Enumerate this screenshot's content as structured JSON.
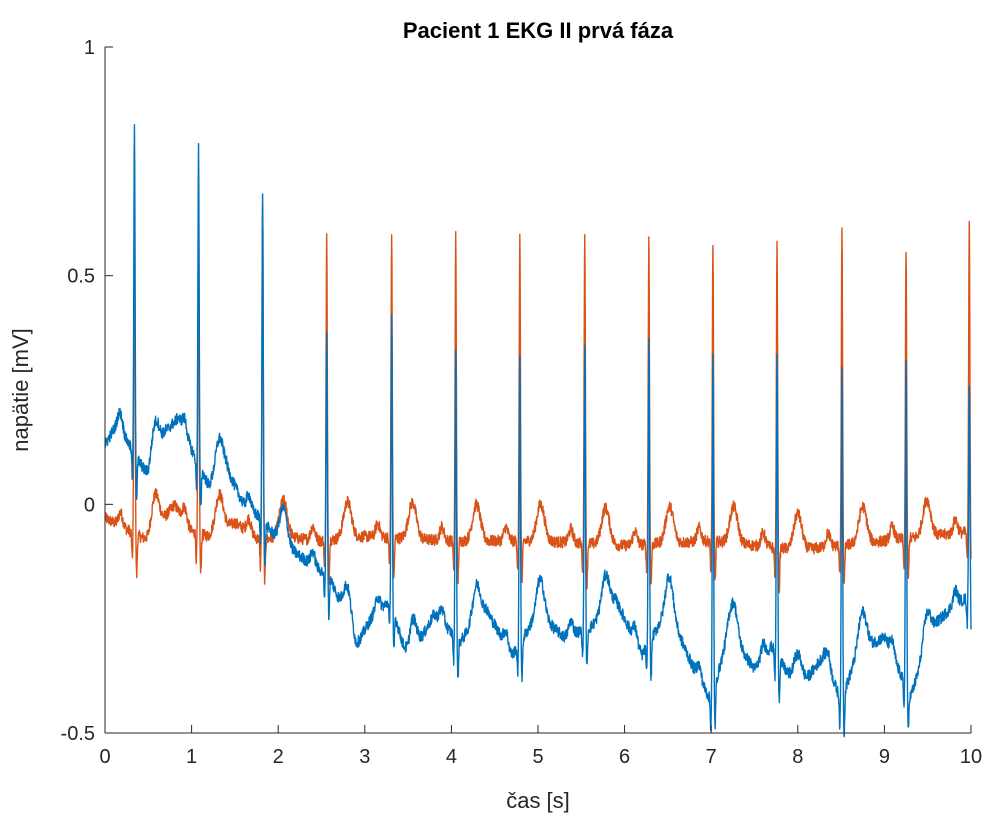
{
  "chart_data": {
    "type": "line",
    "title": "Pacient 1 EKG II prvá fáza",
    "xlabel": "čas [s]",
    "ylabel": "napätie [mV]",
    "xlim": [
      0,
      10
    ],
    "ylim": [
      -0.5,
      1
    ],
    "xticks": [
      0,
      1,
      2,
      3,
      4,
      5,
      6,
      7,
      8,
      9,
      10
    ],
    "xtick_labels": [
      "0",
      "1",
      "2",
      "3",
      "4",
      "5",
      "6",
      "7",
      "8",
      "9",
      "10"
    ],
    "yticks": [
      -0.5,
      0,
      0.5,
      1
    ],
    "ytick_labels": [
      "-0.5",
      "0",
      "0.5",
      "1"
    ],
    "grid": false,
    "legend": "none",
    "colors": {
      "series1": "#0072BD",
      "series2": "#D95319",
      "axis": "#262626"
    },
    "r_peak_times_s": [
      0.34,
      1.08,
      1.82,
      2.56,
      3.31,
      4.05,
      4.79,
      5.54,
      6.28,
      7.02,
      7.76,
      8.51,
      9.25,
      9.98
    ],
    "series": [
      {
        "color": "#0072BD",
        "r_peak_values": [
          0.83,
          0.78,
          0.69,
          0.38,
          0.42,
          0.34,
          0.33,
          0.35,
          0.36,
          0.32,
          0.33,
          0.31,
          0.31,
          0.26
        ],
        "baseline": {
          "x": [
            0,
            0.15,
            0.25,
            0.5,
            0.7,
            0.85,
            1.0,
            1.2,
            1.4,
            1.6,
            1.8,
            2.0,
            2.3,
            2.6,
            2.9,
            3.1,
            3.3,
            3.5,
            3.8,
            4.1,
            4.4,
            4.7,
            5.0,
            5.3,
            5.6,
            5.9,
            6.2,
            6.5,
            6.8,
            7.0,
            7.2,
            7.5,
            7.7,
            8.0,
            8.3,
            8.5,
            8.7,
            9.0,
            9.3,
            9.6,
            9.8,
            10.0
          ],
          "y": [
            0.13,
            0.18,
            0.14,
            0.06,
            0.16,
            0.19,
            0.12,
            0.04,
            0.08,
            0.0,
            -0.03,
            -0.08,
            -0.12,
            -0.16,
            -0.31,
            -0.24,
            -0.21,
            -0.35,
            -0.24,
            -0.3,
            -0.23,
            -0.33,
            -0.24,
            -0.29,
            -0.27,
            -0.21,
            -0.33,
            -0.23,
            -0.36,
            -0.43,
            -0.28,
            -0.36,
            -0.31,
            -0.41,
            -0.33,
            -0.43,
            -0.32,
            -0.29,
            -0.42,
            -0.26,
            -0.22,
            -0.2
          ]
        }
      },
      {
        "color": "#D95319",
        "r_peak_values": [
          0.64,
          0.62,
          0.66,
          0.59,
          0.6,
          0.59,
          0.59,
          0.6,
          0.58,
          0.56,
          0.58,
          0.61,
          0.56,
          0.62
        ],
        "baseline": {
          "x": [
            0,
            0.2,
            0.5,
            0.8,
            1.0,
            1.2,
            1.5,
            1.8,
            2.0,
            2.5,
            3.0,
            4.0,
            5.0,
            6.0,
            7.0,
            8.0,
            9.0,
            10.0
          ],
          "y": [
            -0.03,
            -0.05,
            -0.08,
            0.0,
            -0.06,
            -0.07,
            -0.04,
            -0.08,
            -0.07,
            -0.08,
            -0.07,
            -0.08,
            -0.08,
            -0.09,
            -0.08,
            -0.1,
            -0.08,
            -0.06
          ]
        }
      }
    ]
  }
}
